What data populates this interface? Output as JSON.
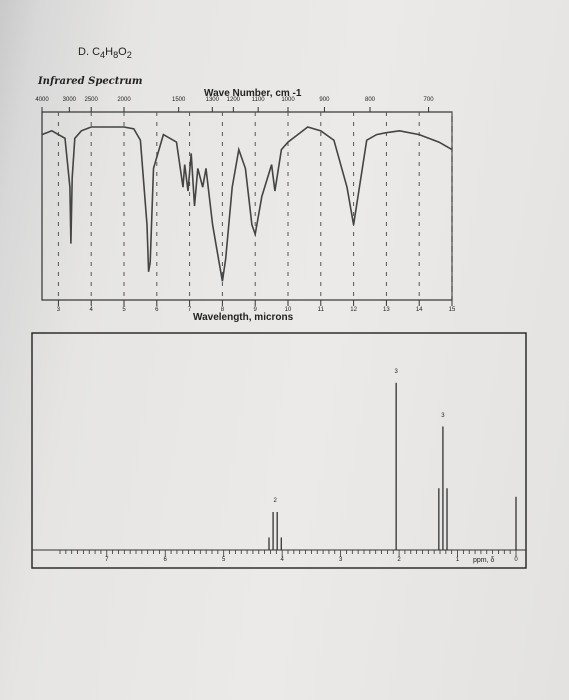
{
  "problem_label": "D.",
  "formula": "C4H8O2",
  "chart_data": [
    {
      "type": "line",
      "title": "Infrared Spectrum",
      "x_top_label": "Wave Number, cm -1",
      "xlabel": "Wavelength, microns",
      "top_ticks": [
        "4000",
        "3000",
        "2500",
        "2000",
        "1500",
        "1300",
        "1200",
        "1100",
        "1000",
        "900",
        "800",
        "700"
      ],
      "bottom_ticks": [
        "3",
        "4",
        "5",
        "6",
        "7",
        "8",
        "9",
        "10",
        "11",
        "12",
        "13",
        "14",
        "15"
      ],
      "xlim": [
        2.5,
        15
      ],
      "ylim": [
        0,
        100
      ],
      "ylabel": "",
      "series": [
        {
          "x": [
            2.5,
            2.8,
            3.0,
            3.2,
            3.35,
            3.38,
            3.42,
            3.5,
            3.7,
            4.0,
            4.5,
            5.0,
            5.3,
            5.5,
            5.7,
            5.75,
            5.8,
            5.9,
            6.2,
            6.6,
            6.8,
            6.85,
            6.95,
            7.05,
            7.15,
            7.25,
            7.4,
            7.5,
            7.7,
            7.9,
            8.0,
            8.1,
            8.3,
            8.5,
            8.7,
            8.9,
            9.0,
            9.2,
            9.5,
            9.6,
            9.8,
            10.0,
            10.3,
            10.6,
            11.0,
            11.4,
            11.8,
            12.0,
            12.4,
            12.7,
            13.0,
            13.4,
            14.0,
            14.6,
            15.0
          ],
          "y": [
            88,
            90,
            88,
            86,
            60,
            30,
            65,
            86,
            90,
            92,
            92,
            92,
            91,
            85,
            40,
            15,
            20,
            70,
            88,
            84,
            60,
            72,
            58,
            78,
            50,
            70,
            60,
            70,
            40,
            20,
            10,
            22,
            60,
            80,
            70,
            40,
            35,
            55,
            72,
            58,
            80,
            84,
            88,
            92,
            90,
            85,
            60,
            40,
            85,
            88,
            89,
            90,
            88,
            84,
            80
          ]
        }
      ]
    },
    {
      "type": "line",
      "title": "",
      "xlabel": "ppm, δ",
      "ylabel": "",
      "tick_labels": [
        "7",
        "6",
        "5",
        "4",
        "3",
        "2",
        "1",
        "0"
      ],
      "xlim": [
        7.8,
        0
      ],
      "ylim": [
        0,
        100
      ],
      "peaks": [
        {
          "ppm": 4.12,
          "pattern": "quartet",
          "height": 20,
          "integration": "2"
        },
        {
          "ppm": 2.05,
          "pattern": "singlet",
          "height": 88,
          "integration": "3"
        },
        {
          "ppm": 1.25,
          "pattern": "triplet",
          "height": 65,
          "integration": "3"
        },
        {
          "ppm": 0.0,
          "pattern": "singlet",
          "height": 28,
          "integration": ""
        }
      ]
    }
  ]
}
